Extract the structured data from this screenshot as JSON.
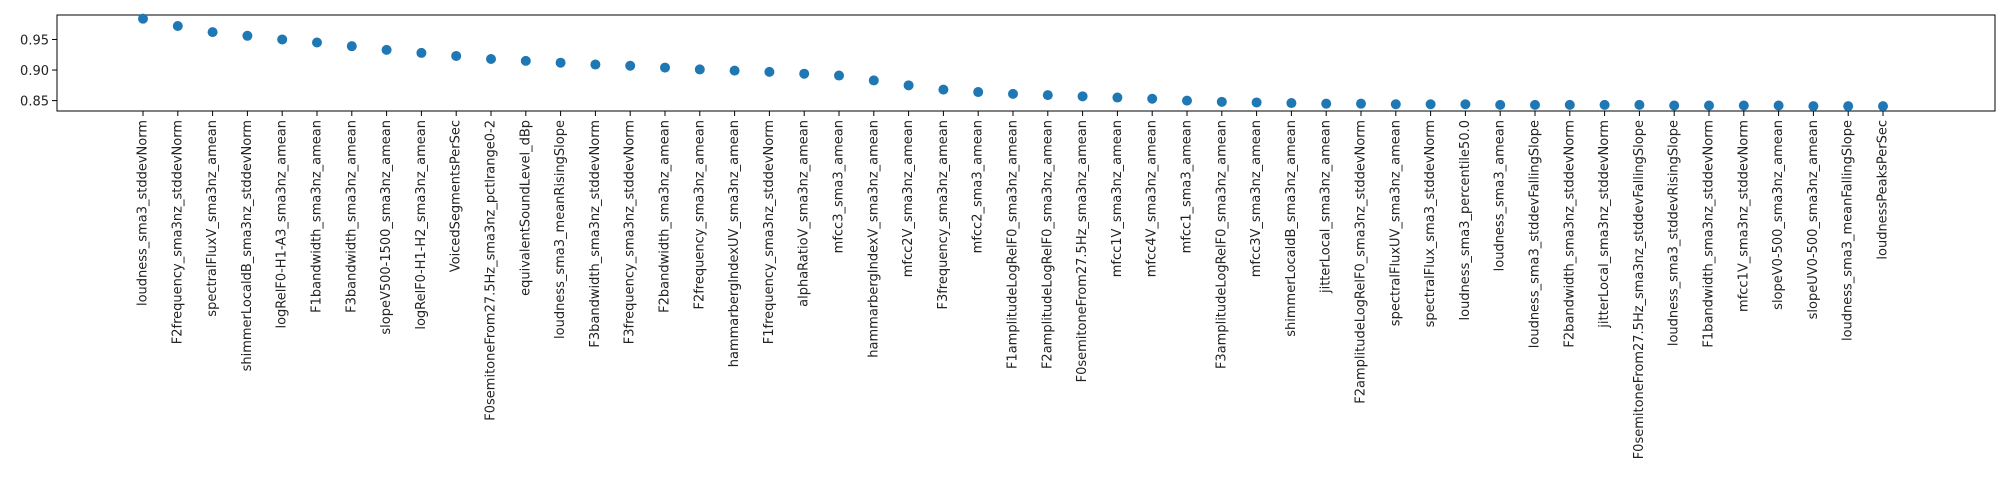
{
  "chart_data": {
    "type": "scatter",
    "title": "",
    "xlabel": "",
    "ylabel": "",
    "ylim": [
      0.833,
      0.99
    ],
    "y_ticks": [
      "0.85",
      "0.90",
      "0.95"
    ],
    "grid": false,
    "marker_color": "#1f77b4",
    "categories": [
      "loudness_sma3_stddevNorm",
      "F2frequency_sma3nz_stddevNorm",
      "spectralFluxV_sma3nz_amean",
      "shimmerLocaldB_sma3nz_stddevNorm",
      "logRelF0-H1-A3_sma3nz_amean",
      "F1bandwidth_sma3nz_amean",
      "F3bandwidth_sma3nz_amean",
      "slopeV500-1500_sma3nz_amean",
      "logRelF0-H1-H2_sma3nz_amean",
      "VoicedSegmentsPerSec",
      "F0semitoneFrom27.5Hz_sma3nz_pctlrange0-2",
      "equivalentSoundLevel_dBp",
      "loudness_sma3_meanRisingSlope",
      "F3bandwidth_sma3nz_stddevNorm",
      "F3frequency_sma3nz_stddevNorm",
      "F2bandwidth_sma3nz_amean",
      "F2frequency_sma3nz_amean",
      "hammarbergIndexUV_sma3nz_amean",
      "F1frequency_sma3nz_stddevNorm",
      "alphaRatioV_sma3nz_amean",
      "mfcc3_sma3_amean",
      "hammarbergIndexV_sma3nz_amean",
      "mfcc2V_sma3nz_amean",
      "F3frequency_sma3nz_amean",
      "mfcc2_sma3_amean",
      "F1amplitudeLogRelF0_sma3nz_amean",
      "F2amplitudeLogRelF0_sma3nz_amean",
      "F0semitoneFrom27.5Hz_sma3nz_amean",
      "mfcc1V_sma3nz_amean",
      "mfcc4V_sma3nz_amean",
      "mfcc1_sma3_amean",
      "F3amplitudeLogRelF0_sma3nz_amean",
      "mfcc3V_sma3nz_amean",
      "shimmerLocaldB_sma3nz_amean",
      "jitterLocal_sma3nz_amean",
      "F2amplitudeLogRelF0_sma3nz_stddevNorm",
      "spectralFluxUV_sma3nz_amean",
      "spectralFlux_sma3_stddevNorm",
      "loudness_sma3_percentile50.0",
      "loudness_sma3_amean",
      "loudness_sma3_stddevFallingSlope",
      "F2bandwidth_sma3nz_stddevNorm",
      "jitterLocal_sma3nz_stddevNorm",
      "F0semitoneFrom27.5Hz_sma3nz_stddevFallingSlope",
      "loudness_sma3_stddevRisingSlope",
      "F1bandwidth_sma3nz_stddevNorm",
      "mfcc1V_sma3nz_stddevNorm",
      "slopeV0-500_sma3nz_amean",
      "slopeUV0-500_sma3nz_amean",
      "loudness_sma3_meanFallingSlope",
      "loudnessPeaksPerSec"
    ],
    "values": [
      0.984,
      0.972,
      0.962,
      0.956,
      0.95,
      0.945,
      0.939,
      0.933,
      0.928,
      0.923,
      0.918,
      0.915,
      0.912,
      0.909,
      0.907,
      0.904,
      0.901,
      0.899,
      0.897,
      0.894,
      0.891,
      0.883,
      0.875,
      0.868,
      0.864,
      0.861,
      0.859,
      0.857,
      0.855,
      0.853,
      0.85,
      0.848,
      0.847,
      0.846,
      0.845,
      0.845,
      0.844,
      0.844,
      0.844,
      0.843,
      0.843,
      0.843,
      0.843,
      0.843,
      0.842,
      0.842,
      0.842,
      0.842,
      0.841,
      0.841,
      0.841
    ]
  }
}
